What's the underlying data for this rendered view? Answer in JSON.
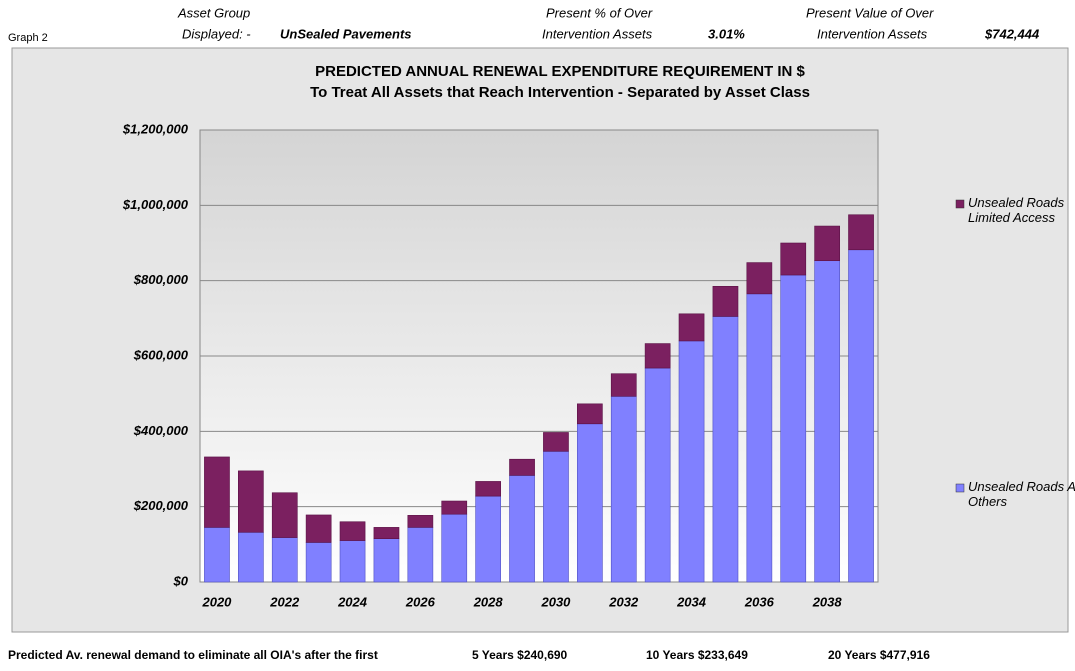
{
  "header": {
    "graph_label": "Graph 2",
    "asset_group_label_1": "Asset Group",
    "asset_group_label_2": "Displayed: -",
    "asset_group_value": "UnSealed Pavements",
    "percent_label_1": "Present % of Over",
    "percent_label_2": "Intervention Assets",
    "percent_value": "3.01%",
    "value_label_1": "Present Value of Over",
    "value_label_2": "Intervention Assets",
    "value_value": "$742,444"
  },
  "chart_data": {
    "type": "stacked_bar",
    "title": "PREDICTED ANNUAL RENEWAL EXPENDITURE REQUIREMENT IN $",
    "subtitle": "To Treat All Assets that Reach Intervention - Separated by Asset Class",
    "categories": [
      "2020",
      null,
      "2022",
      null,
      "2024",
      null,
      "2026",
      null,
      "2028",
      null,
      "2030",
      null,
      "2032",
      null,
      "2034",
      null,
      "2036",
      null,
      "2038",
      null
    ],
    "series": [
      {
        "name": "Unsealed Roads All Others",
        "color": "#8080ff",
        "values": [
          145000,
          132000,
          118000,
          105000,
          110000,
          115000,
          145000,
          180000,
          228000,
          283000,
          347000,
          420000,
          493000,
          568000,
          640000,
          705000,
          765000,
          815000,
          853000,
          882000
        ]
      },
      {
        "name": "Unsealed Roads Limited Access",
        "color": "#7b2060",
        "values": [
          187000,
          163000,
          119000,
          73000,
          50000,
          30000,
          32000,
          35000,
          39000,
          43000,
          50000,
          53000,
          60000,
          65000,
          72000,
          80000,
          83000,
          85000,
          92000,
          93000
        ]
      }
    ],
    "ylim": [
      0,
      1200000
    ],
    "yticks": [
      {
        "value": 0,
        "label": "$0"
      },
      {
        "value": 200000,
        "label": "$200,000"
      },
      {
        "value": 400000,
        "label": "$400,000"
      },
      {
        "value": 600000,
        "label": "$600,000"
      },
      {
        "value": 800000,
        "label": "$800,000"
      },
      {
        "value": 1000000,
        "label": "$1,000,000"
      },
      {
        "value": 1200000,
        "label": "$1,200,000"
      }
    ],
    "grid": true
  },
  "footer": {
    "intro": "Predicted Av. renewal demand to eliminate all OIA's after the first",
    "items": [
      "5 Years $240,690",
      "10 Years $233,649",
      "20 Years $477,916"
    ]
  }
}
